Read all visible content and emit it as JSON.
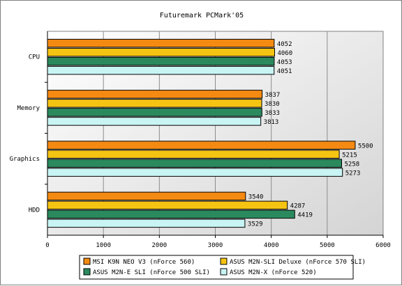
{
  "chart_data": {
    "type": "bar",
    "orientation": "horizontal",
    "title": "Futuremark PCMark'05",
    "xlabel": "",
    "ylabel": "",
    "xlim": [
      0,
      6000
    ],
    "xticks": [
      0,
      1000,
      2000,
      3000,
      4000,
      5000,
      6000
    ],
    "categories": [
      "CPU",
      "Memory",
      "Graphics",
      "HDD"
    ],
    "series": [
      {
        "name": "MSI K9N NEO V3 (nForce 560)",
        "color": "#f58a12",
        "values": [
          4052,
          3837,
          5500,
          3540
        ]
      },
      {
        "name": "ASUS M2N-SLI Deluxe (nForce 570 SLI)",
        "color": "#f5c413",
        "values": [
          4060,
          3830,
          5215,
          4287
        ]
      },
      {
        "name": "ASUS M2N-E SLI (nForce 500 SLI)",
        "color": "#2a8a5e",
        "values": [
          4053,
          3833,
          5258,
          4419
        ]
      },
      {
        "name": "ASUS M2N-X (nForce 520)",
        "color": "#c8f4f4",
        "values": [
          4051,
          3813,
          5273,
          3529
        ]
      }
    ],
    "grid": true,
    "legend_position": "bottom"
  }
}
